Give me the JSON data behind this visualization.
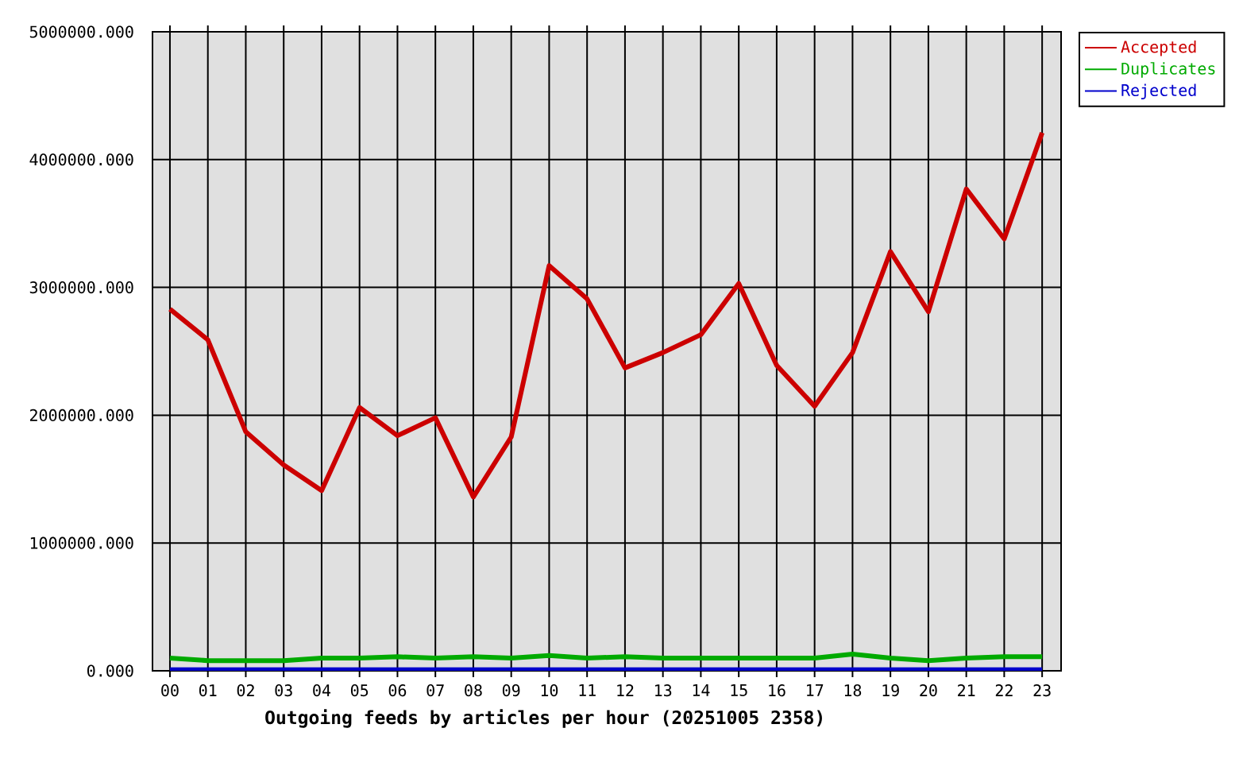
{
  "chart_data": {
    "type": "line",
    "xlabel": "Outgoing feeds by articles per hour (20251005 2358)",
    "categories": [
      "00",
      "01",
      "02",
      "03",
      "04",
      "05",
      "06",
      "07",
      "08",
      "09",
      "10",
      "11",
      "12",
      "13",
      "14",
      "15",
      "16",
      "17",
      "18",
      "19",
      "20",
      "21",
      "22",
      "23"
    ],
    "series": [
      {
        "name": "Accepted",
        "color": "#cc0000",
        "values": [
          2830000,
          2590000,
          1870000,
          1610000,
          1410000,
          2060000,
          1840000,
          1980000,
          1360000,
          1830000,
          3170000,
          2910000,
          2370000,
          2490000,
          2630000,
          3030000,
          2390000,
          2070000,
          2490000,
          3280000,
          2810000,
          3770000,
          3380000,
          4210000
        ]
      },
      {
        "name": "Duplicates",
        "color": "#00aa00",
        "values": [
          100000,
          80000,
          80000,
          80000,
          100000,
          100000,
          110000,
          100000,
          110000,
          100000,
          120000,
          100000,
          110000,
          100000,
          100000,
          100000,
          100000,
          100000,
          130000,
          100000,
          80000,
          100000,
          110000,
          110000
        ]
      },
      {
        "name": "Rejected",
        "color": "#0000cc",
        "values": [
          10000,
          10000,
          10000,
          10000,
          10000,
          10000,
          10000,
          10000,
          10000,
          10000,
          10000,
          10000,
          10000,
          10000,
          10000,
          10000,
          10000,
          10000,
          10000,
          10000,
          10000,
          10000,
          10000,
          10000
        ]
      }
    ],
    "ylim": [
      0,
      5000000
    ],
    "yticks": [
      {
        "value": 0,
        "label": "0.000"
      },
      {
        "value": 1000000,
        "label": "1000000.000"
      },
      {
        "value": 2000000,
        "label": "2000000.000"
      },
      {
        "value": 3000000,
        "label": "3000000.000"
      },
      {
        "value": 4000000,
        "label": "4000000.000"
      },
      {
        "value": 5000000,
        "label": "5000000.000"
      }
    ],
    "grid": true,
    "legend": "top right"
  }
}
